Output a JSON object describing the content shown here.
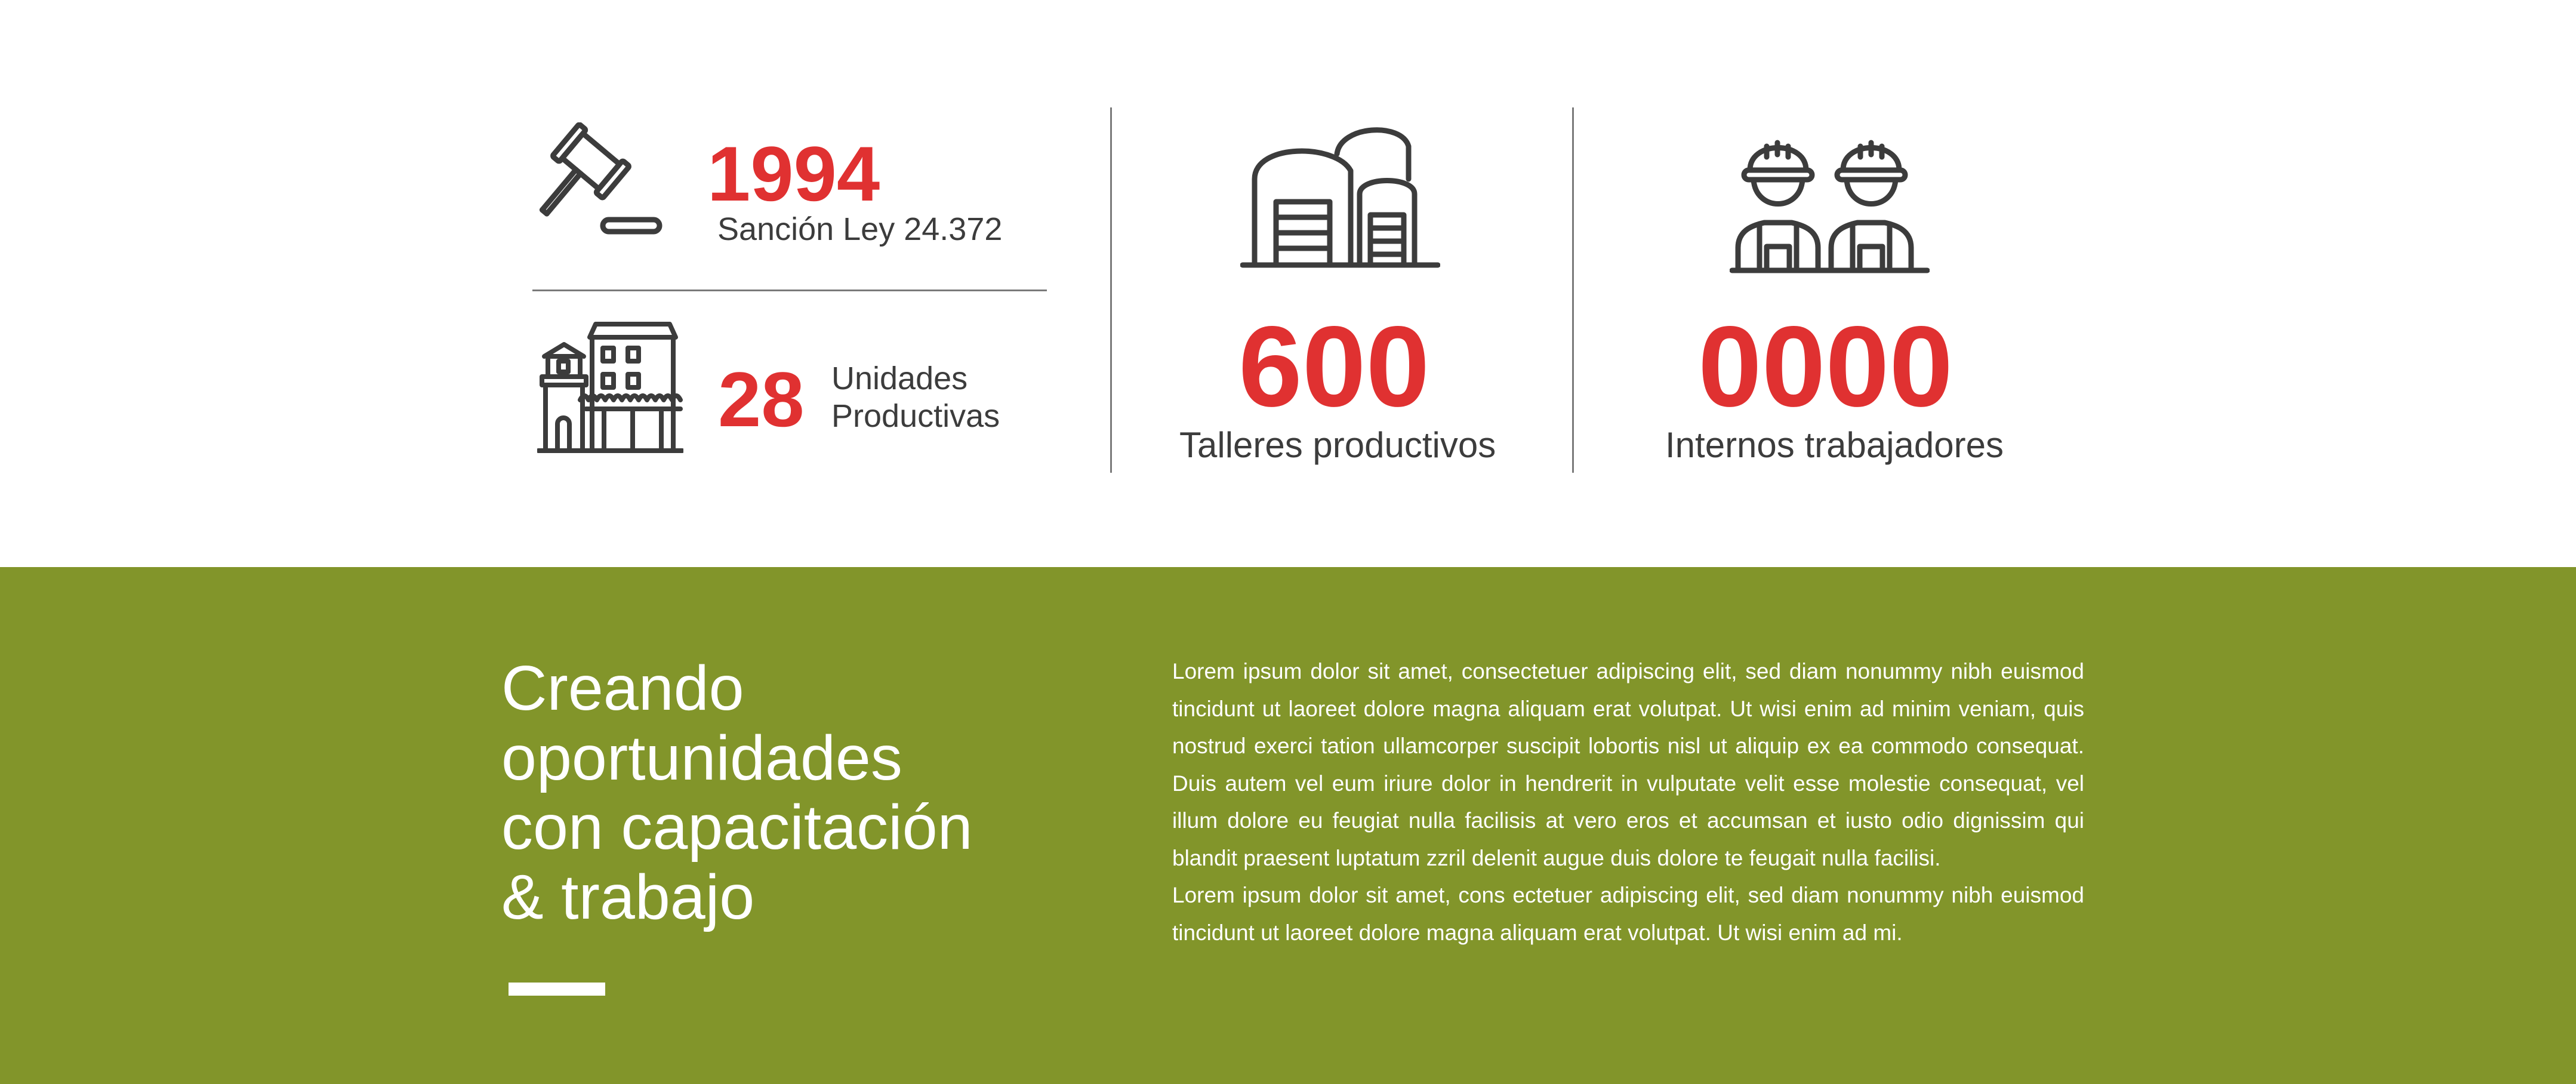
{
  "colors": {
    "accent_red": "#e03131",
    "band_green": "#82952a",
    "icon_gray": "#3c3c3c",
    "divider_gray": "#7a7a7a",
    "white": "#ffffff"
  },
  "stats": {
    "law": {
      "icon": "gavel-icon",
      "number": "1994",
      "caption": "Sanción Ley 24.372"
    },
    "units": {
      "icon": "prison-building-icon",
      "number": "28",
      "caption_line1": "Unidades",
      "caption_line2": "Productivas"
    },
    "workshops": {
      "icon": "warehouse-icon",
      "number": "600",
      "caption": "Talleres productivos"
    },
    "workers": {
      "icon": "workers-icon",
      "number": "0000",
      "caption": "Internos trabajadores"
    }
  },
  "band": {
    "title_lines": [
      "Creando",
      "oportunidades",
      "con capacitación",
      "& trabajo"
    ],
    "paragraph1": "Lorem ipsum dolor sit amet, consectetuer adipiscing elit, sed diam nonummy nibh euismod tincidunt ut laoreet dolore magna aliquam erat volutpat. Ut wisi enim ad minim veniam, quis nostrud exerci tation ullamcorper suscipit lobortis nisl ut aliquip ex ea commodo consequat. Duis autem vel eum iriure dolor in hendrerit in vulputate velit esse molestie consequat, vel illum dolore eu feugiat nulla facilisis at vero eros et accumsan et iusto odio dignissim qui blandit praesent luptatum zzril delenit augue duis dolore te feugait nulla facilisi.",
    "paragraph2": "Lorem ipsum dolor sit amet, cons ectetuer adipiscing elit, sed diam nonummy nibh euismod tincidunt ut laoreet dolore magna aliquam erat volutpat. Ut wisi enim ad mi."
  }
}
